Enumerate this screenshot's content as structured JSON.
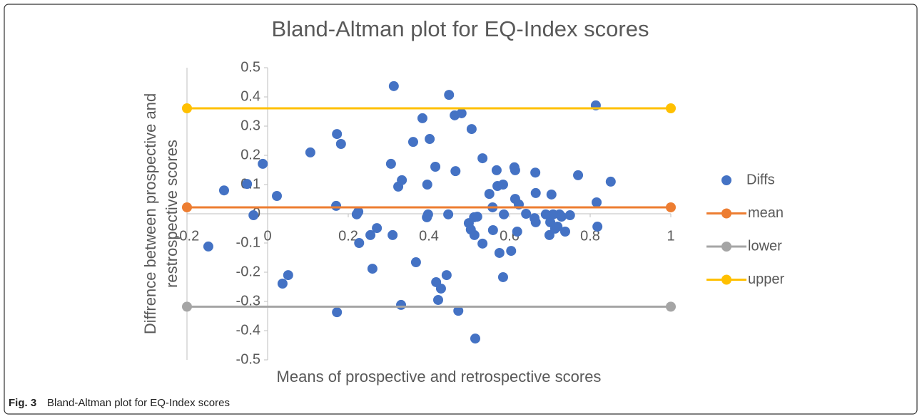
{
  "chart_data": {
    "type": "scatter",
    "title": "Bland-Altman plot for EQ-Index scores",
    "x_label": "Means of prospective and retrospective scores",
    "y_label": [
      "Diffrence between prospective and",
      "restrospective scores"
    ],
    "caption_label": "Fig. 3",
    "caption_text": "Bland-Altman plot for EQ-Index scores",
    "xlim": [
      -0.2,
      1
    ],
    "xticks": [
      -0.2,
      0,
      0.2,
      0.4,
      0.6,
      0.8,
      1
    ],
    "ylim": [
      -0.5,
      0.5
    ],
    "yticks": [
      0.5,
      0.4,
      0.3,
      0.2,
      0.1,
      0,
      -0.1,
      -0.2,
      -0.3,
      -0.4,
      -0.5
    ],
    "legend": "right",
    "series": [
      {
        "name": "Diffs",
        "color": "#4472c4",
        "mode": "markers",
        "x": [
          -0.147,
          -0.108,
          -0.051,
          -0.035,
          -0.012,
          0.023,
          0.051,
          0.037,
          0.106,
          0.17,
          0.172,
          0.182,
          0.172,
          0.221,
          0.225,
          0.227,
          0.255,
          0.271,
          0.26,
          0.306,
          0.31,
          0.313,
          0.324,
          0.333,
          0.331,
          0.361,
          0.368,
          0.384,
          0.395,
          0.398,
          0.396,
          0.402,
          0.416,
          0.418,
          0.423,
          0.43,
          0.444,
          0.448,
          0.45,
          0.464,
          0.466,
          0.473,
          0.481,
          0.499,
          0.504,
          0.506,
          0.512,
          0.513,
          0.515,
          0.52,
          0.533,
          0.533,
          0.55,
          0.558,
          0.559,
          0.568,
          0.57,
          0.575,
          0.584,
          0.584,
          0.586,
          0.604,
          0.612,
          0.614,
          0.614,
          0.623,
          0.619,
          0.641,
          0.662,
          0.664,
          0.665,
          0.665,
          0.69,
          0.699,
          0.701,
          0.704,
          0.708,
          0.713,
          0.719,
          0.724,
          0.729,
          0.738,
          0.75,
          0.77,
          0.814,
          0.816,
          0.818,
          0.851
        ],
        "values": [
          -0.112,
          0.08,
          0.102,
          -0.005,
          0.171,
          0.061,
          -0.21,
          -0.239,
          0.21,
          0.027,
          0.273,
          0.239,
          -0.337,
          -0.002,
          0.007,
          -0.1,
          -0.073,
          -0.049,
          -0.188,
          0.171,
          -0.073,
          0.437,
          0.093,
          0.115,
          -0.312,
          0.246,
          -0.166,
          0.327,
          -0.012,
          -0.002,
          0.1,
          0.256,
          0.161,
          -0.234,
          -0.295,
          -0.256,
          -0.21,
          -0.002,
          0.407,
          0.337,
          0.146,
          -0.332,
          0.344,
          -0.032,
          -0.054,
          0.29,
          -0.012,
          -0.073,
          -0.427,
          -0.01,
          0.19,
          -0.102,
          0.068,
          0.022,
          -0.056,
          0.149,
          0.095,
          -0.134,
          0.1,
          -0.217,
          -0.002,
          -0.127,
          0.159,
          0.149,
          0.051,
          0.032,
          -0.061,
          0.0,
          -0.015,
          0.141,
          0.071,
          -0.029,
          -0.002,
          -0.073,
          -0.029,
          0.066,
          -0.002,
          -0.051,
          -0.044,
          -0.002,
          -0.01,
          -0.061,
          -0.005,
          0.132,
          0.371,
          0.039,
          -0.044,
          0.11
        ]
      },
      {
        "name": "mean",
        "color": "#ed7d31",
        "mode": "lines+markers",
        "x": [
          -0.2,
          1
        ],
        "values": [
          0.022,
          0.022
        ]
      },
      {
        "name": "lower",
        "color": "#a5a5a5",
        "mode": "lines+markers",
        "x": [
          -0.2,
          1
        ],
        "values": [
          -0.318,
          -0.318
        ]
      },
      {
        "name": "upper",
        "color": "#ffc000",
        "mode": "lines+markers",
        "x": [
          -0.2,
          1
        ],
        "values": [
          0.361,
          0.361
        ]
      }
    ]
  }
}
